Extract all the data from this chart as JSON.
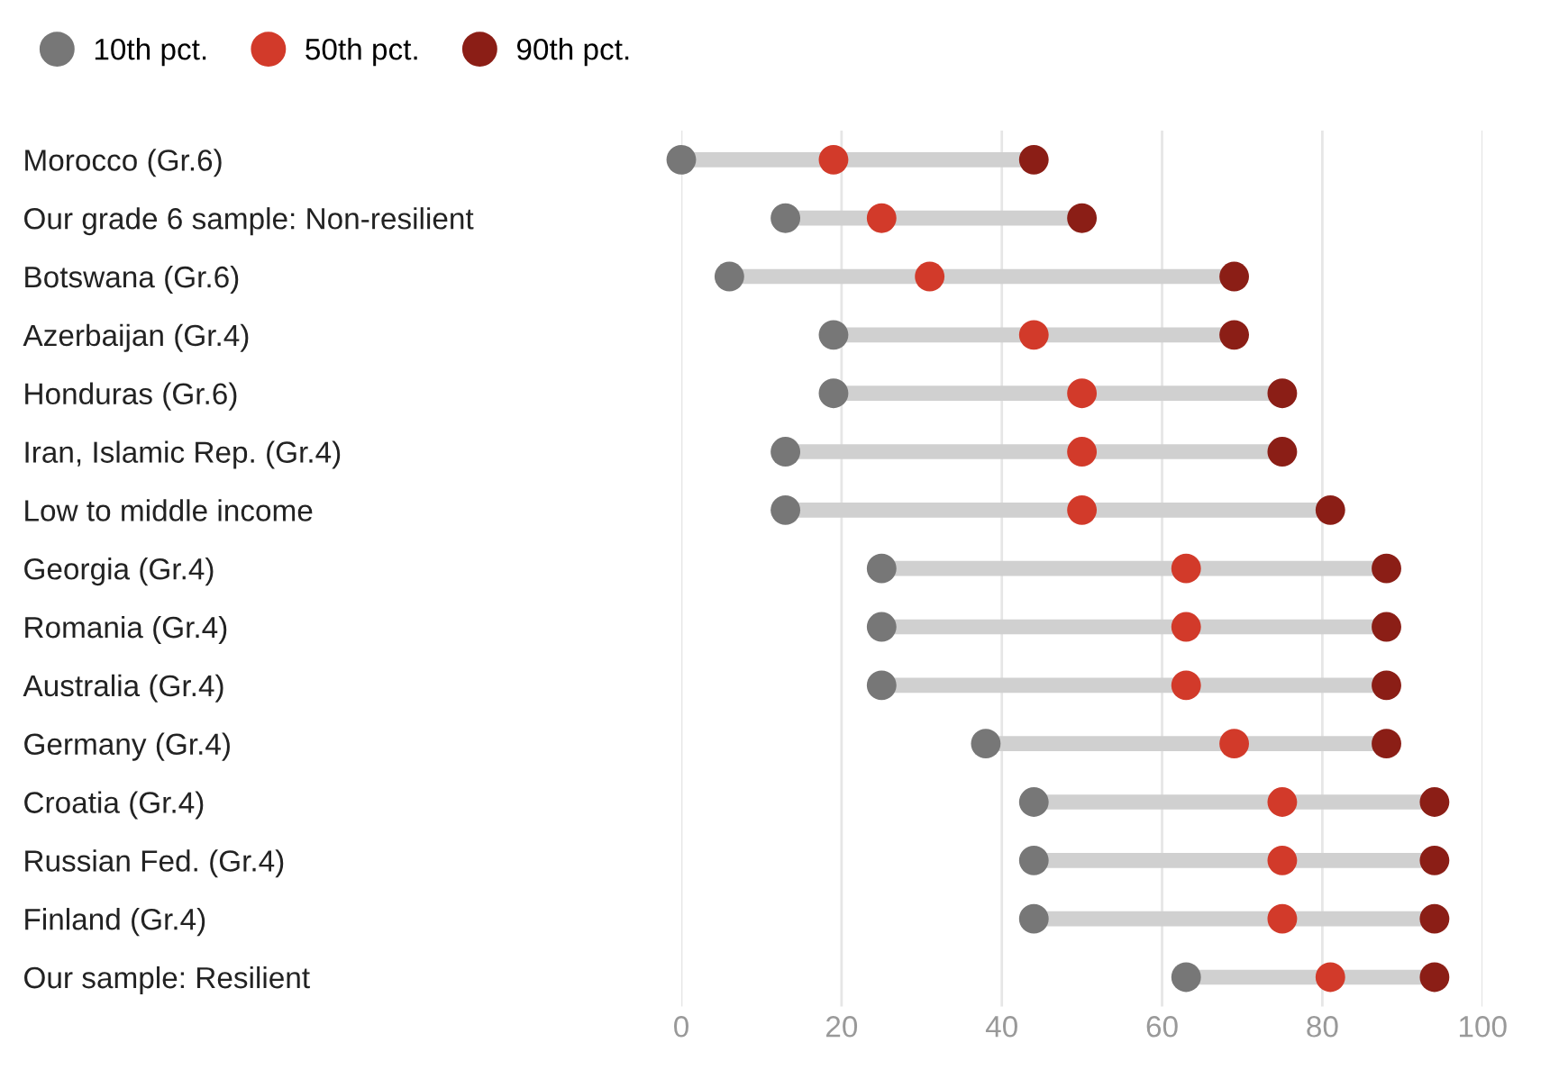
{
  "chart_data": {
    "type": "scatter",
    "orientation": "horizontal",
    "categories": [
      "Morocco (Gr.6)",
      "Our grade 6 sample: Non-resilient",
      "Botswana (Gr.6)",
      "Azerbaijan (Gr.4)",
      "Honduras (Gr.6)",
      "Iran, Islamic Rep. (Gr.4)",
      "Low to middle income",
      "Georgia (Gr.4)",
      "Romania (Gr.4)",
      "Australia (Gr.4)",
      "Germany (Gr.4)",
      "Croatia (Gr.4)",
      "Russian Fed. (Gr.4)",
      "Finland (Gr.4)",
      "Our sample: Resilient"
    ],
    "series": [
      {
        "name": "10th pct.",
        "color": "#777777",
        "values": [
          0,
          13,
          6,
          19,
          19,
          13,
          13,
          25,
          25,
          25,
          38,
          44,
          44,
          44,
          63
        ]
      },
      {
        "name": "50th pct.",
        "color": "#d23a2a",
        "values": [
          19,
          25,
          31,
          44,
          50,
          50,
          50,
          63,
          63,
          63,
          69,
          75,
          75,
          75,
          81
        ]
      },
      {
        "name": "90th pct.",
        "color": "#8b1e16",
        "values": [
          44,
          50,
          69,
          69,
          75,
          75,
          81,
          88,
          88,
          88,
          88,
          94,
          94,
          94,
          94
        ]
      }
    ],
    "xlim": [
      0,
      100
    ],
    "xticks": [
      0,
      20,
      40,
      60,
      80,
      100
    ],
    "grid": "x",
    "legend": "top left",
    "marker": "circle"
  }
}
